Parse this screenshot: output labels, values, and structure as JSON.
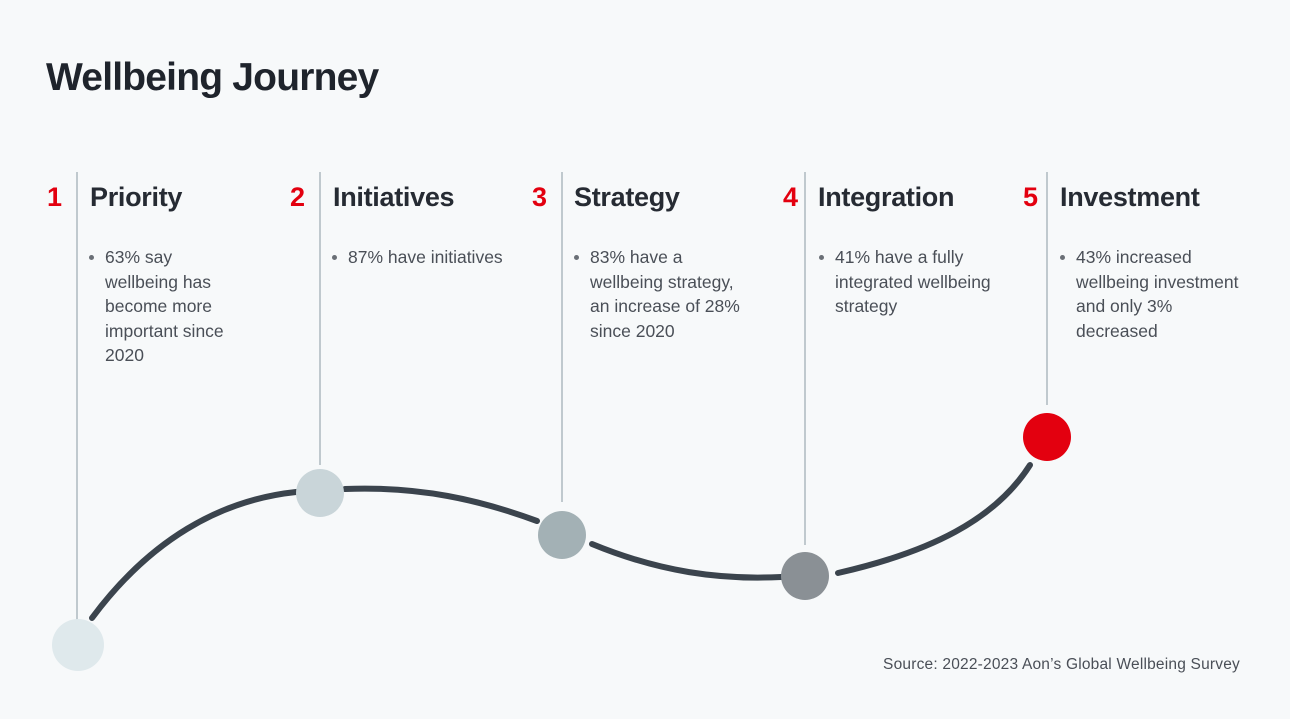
{
  "title": "Wellbeing Journey",
  "stages": [
    {
      "number": "1",
      "heading": "Priority",
      "text": "63% say wellbeing has become more important since 2020",
      "color": "#dfe9ec"
    },
    {
      "number": "2",
      "heading": "Initiatives",
      "text": "87% have initiatives",
      "color": "#c9d5d9"
    },
    {
      "number": "3",
      "heading": "Strategy",
      "text": "83% have a wellbeing strategy, an increase of 28% since 2020",
      "color": "#a3b1b5"
    },
    {
      "number": "4",
      "heading": "Integration",
      "text": "41% have a fully integrated wellbeing strategy",
      "color": "#8a9095"
    },
    {
      "number": "5",
      "heading": "Investment",
      "text": "43% increased wellbeing investment and only 3% decreased",
      "color": "#e3000f"
    }
  ],
  "source": "Source: 2022-2023 Aon’s Global Wellbeing Survey",
  "colors": {
    "accent": "#e3000f",
    "curve": "#3b444d",
    "connector": "#aeb9c0"
  }
}
